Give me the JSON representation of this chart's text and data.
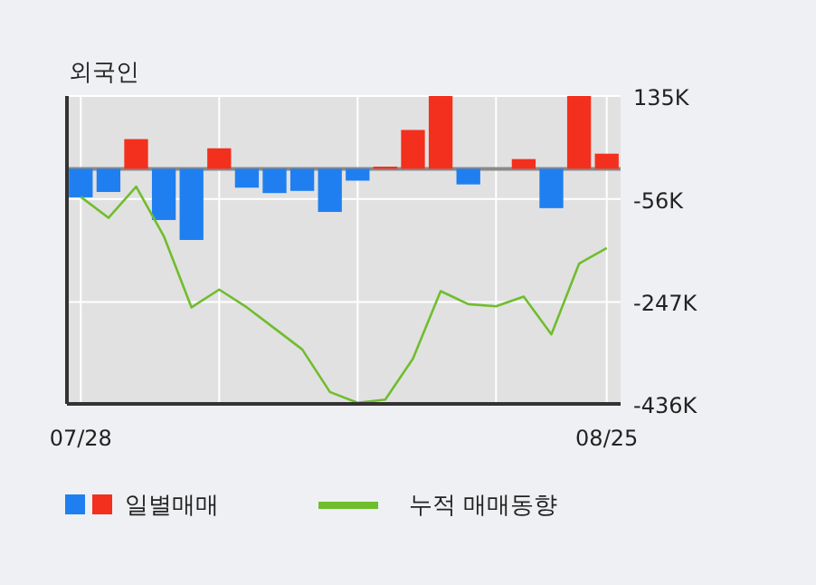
{
  "chart_data": {
    "type": "bar",
    "title": "외국인",
    "categories": [
      "07/28",
      null,
      null,
      null,
      null,
      null,
      null,
      null,
      null,
      null,
      null,
      null,
      null,
      null,
      null,
      null,
      null,
      null,
      null,
      "08/25"
    ],
    "series": [
      {
        "name": "일별매매",
        "colors": [
          "#1f7ff0",
          "#1f7ff0",
          "#f3301e",
          "#1f7ff0",
          "#1f7ff0",
          "#f3301e",
          "#1f7ff0",
          "#1f7ff0",
          "#1f7ff0",
          "#1f7ff0",
          "#1f7ff0",
          "#f3301e",
          "#f3301e",
          "#f3301e",
          "#1f7ff0",
          "#f3301e",
          "#f3301e",
          "#1f7ff0",
          "#f3301e",
          "#f3301e"
        ],
        "values": [
          -53,
          -43,
          55,
          -95,
          -132,
          38,
          -35,
          -45,
          -41,
          -80,
          -22,
          4,
          72,
          135,
          -29,
          0,
          18,
          -73,
          135,
          28
        ]
      },
      {
        "name": "누적 매매동향",
        "type": "line",
        "color": "#70bd2e",
        "values": [
          -52,
          -91,
          -33,
          -125,
          -257,
          -224,
          -257,
          -296,
          -335,
          -414,
          -434,
          -428,
          -352,
          -227,
          -251,
          -255,
          -237,
          -307,
          -176,
          -147
        ]
      }
    ],
    "ylim": [
      -436,
      135
    ],
    "yticks": [
      {
        "value": 135,
        "label": "135K"
      },
      {
        "value": -56,
        "label": "-56K"
      },
      {
        "value": -247,
        "label": "-247K"
      },
      {
        "value": -436,
        "label": "-436K"
      }
    ],
    "grid": true,
    "legend": "bottom"
  }
}
